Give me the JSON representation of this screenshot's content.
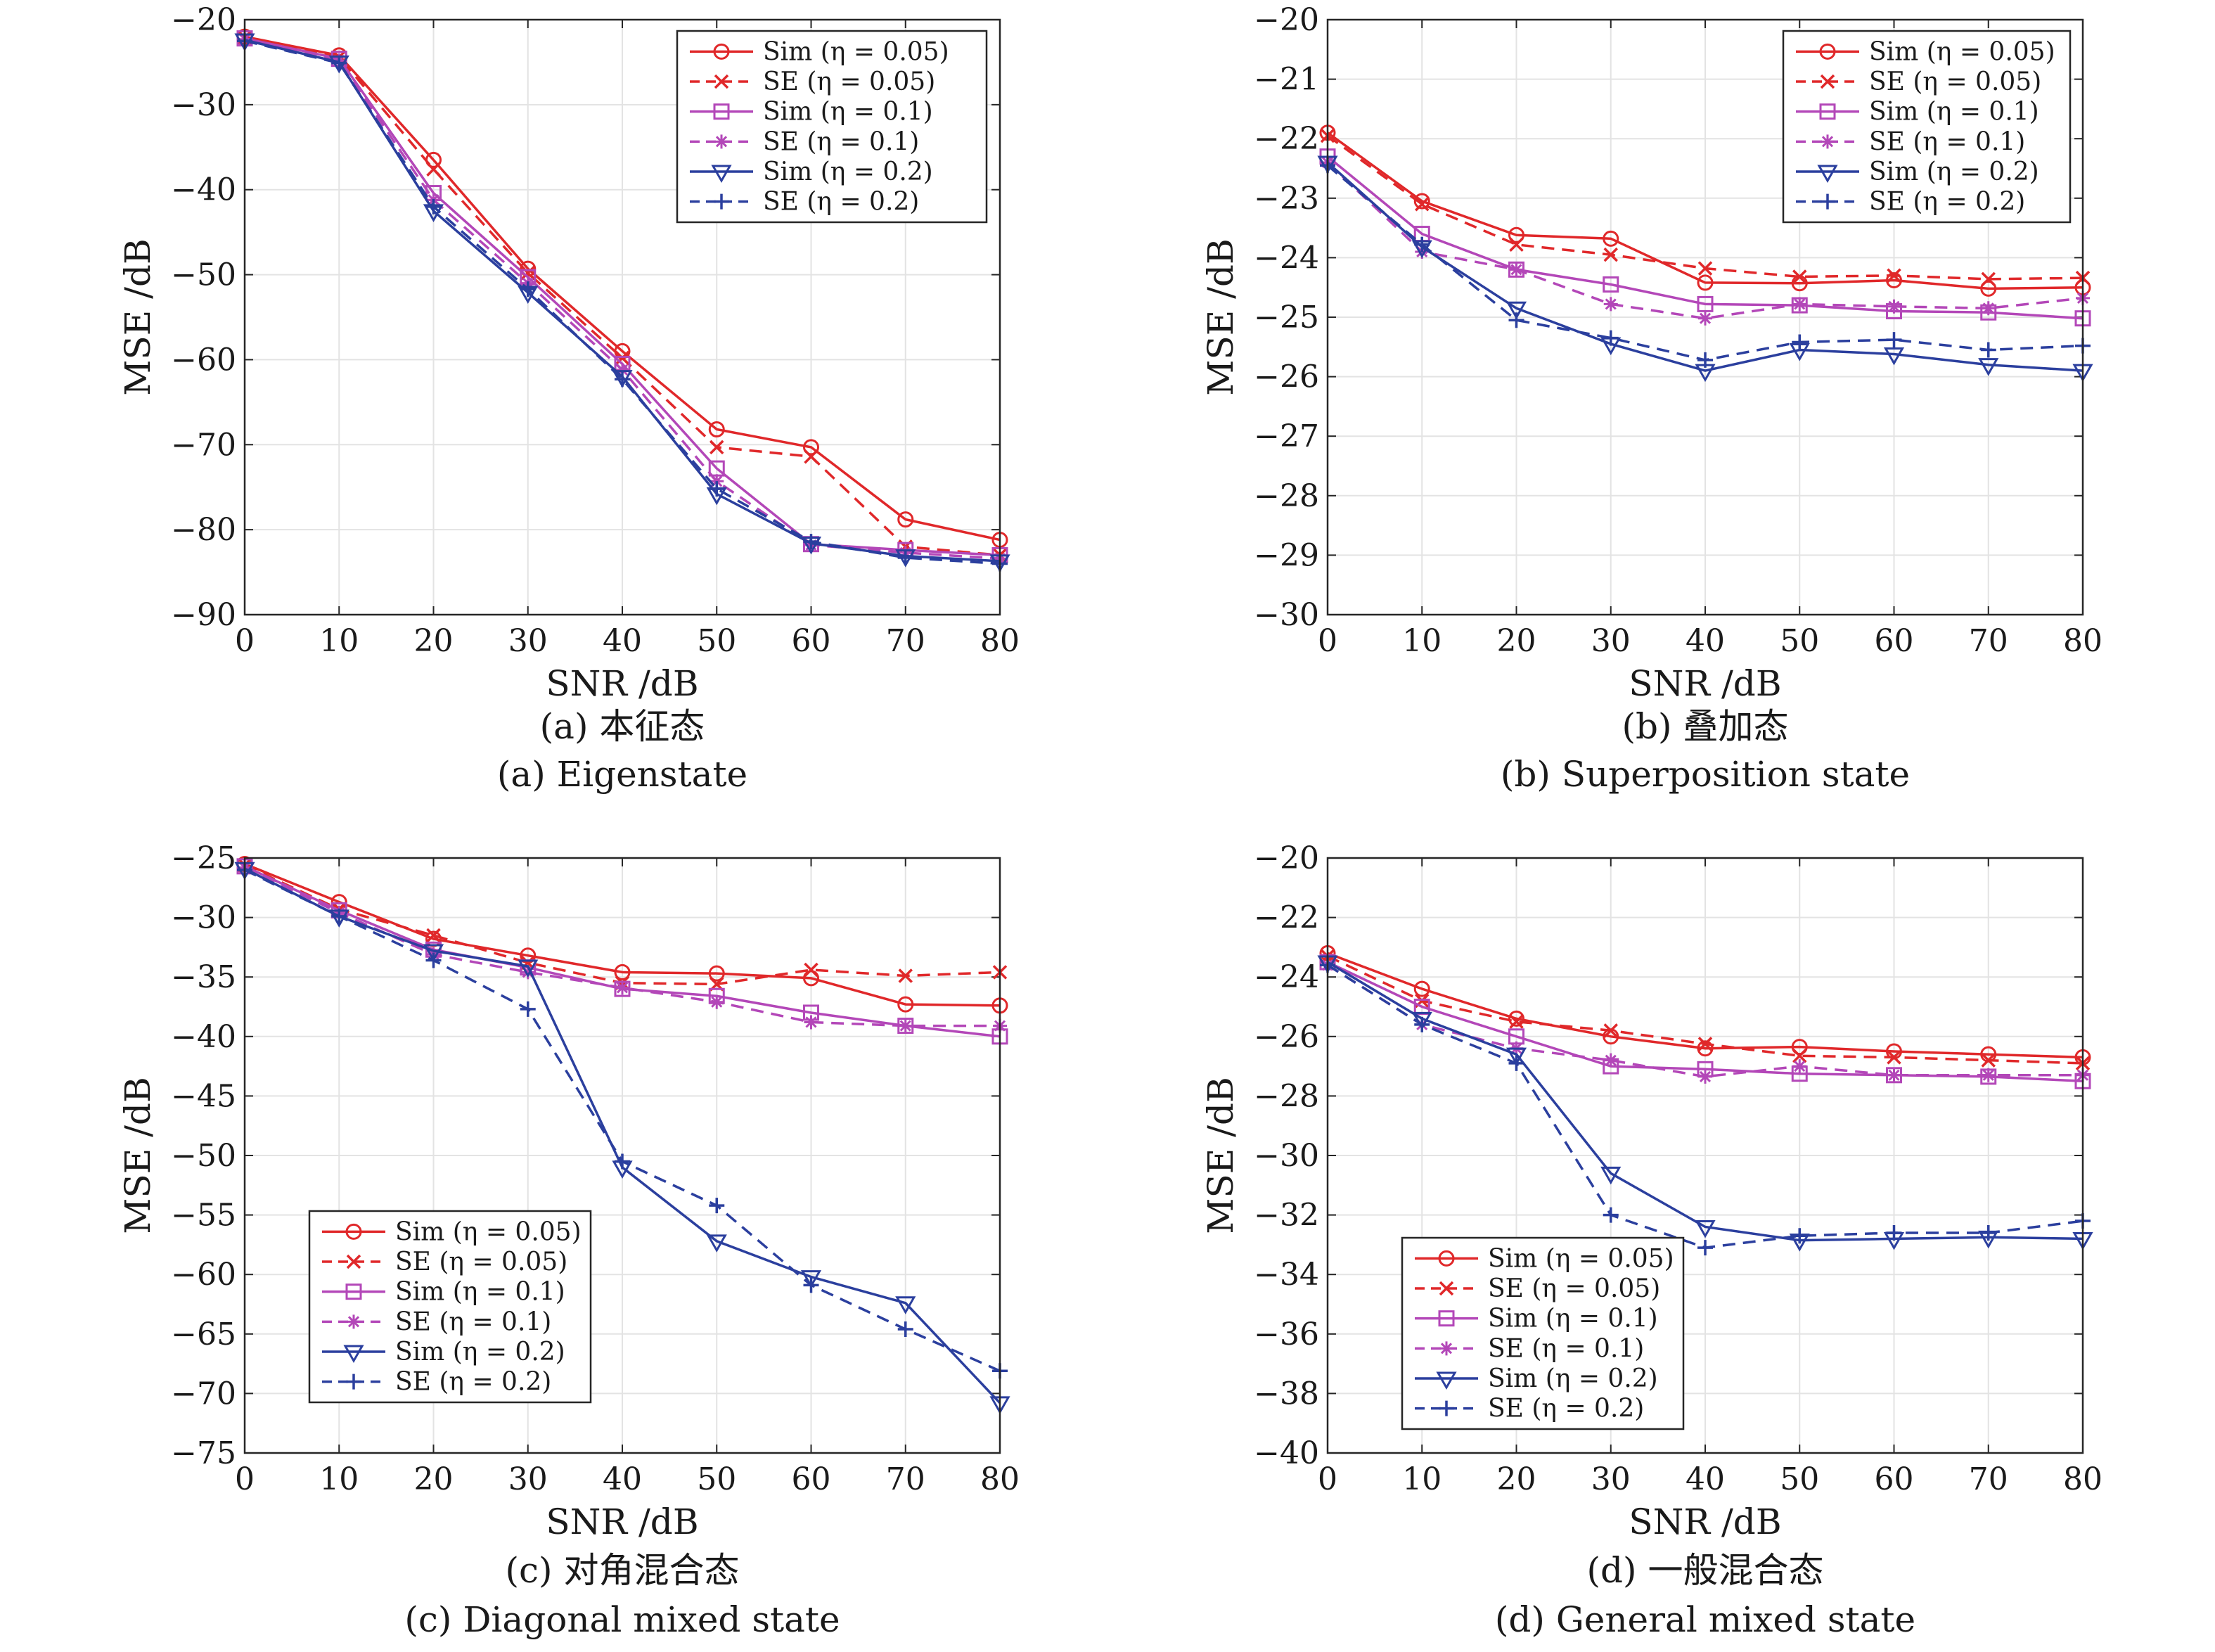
{
  "chart_data": [
    {
      "type": "line",
      "caption_cn": "(a) 本征态",
      "caption_en": "(a) Eigenstate",
      "xlabel": "SNR /dB",
      "ylabel": "MSE /dB",
      "xlim": [
        0,
        80
      ],
      "ylim": [
        -90,
        -20
      ],
      "xticks": [
        0,
        10,
        20,
        30,
        40,
        50,
        60,
        70,
        80
      ],
      "yticks": [
        -20,
        -30,
        -40,
        -50,
        -60,
        -70,
        -80,
        -90
      ],
      "grid": true,
      "legend_position": "top-right",
      "x": [
        0,
        10,
        20,
        30,
        40,
        50,
        60,
        70,
        80
      ],
      "series": [
        {
          "name": "Sim (η = 0.05)",
          "color": "#e0282a",
          "dash": "solid",
          "marker": "circle",
          "values": [
            -22.0,
            -24.2,
            -36.5,
            -49.3,
            -59.0,
            -68.2,
            -70.3,
            -78.8,
            -81.2
          ]
        },
        {
          "name": "SE (η = 0.05)",
          "color": "#e0282a",
          "dash": "dashed",
          "marker": "x",
          "values": [
            -22.1,
            -24.4,
            -37.6,
            -49.8,
            -59.8,
            -70.3,
            -71.4,
            -82.0,
            -83.0
          ]
        },
        {
          "name": "Sim (η = 0.1)",
          "color": "#b347b8",
          "dash": "solid",
          "marker": "square",
          "values": [
            -22.2,
            -24.6,
            -40.4,
            -50.3,
            -60.5,
            -72.8,
            -81.7,
            -82.4,
            -83.0
          ]
        },
        {
          "name": "SE (η = 0.1)",
          "color": "#b347b8",
          "dash": "dashed",
          "marker": "asterisk",
          "values": [
            -22.3,
            -24.8,
            -41.2,
            -51.0,
            -61.2,
            -74.3,
            -81.8,
            -82.7,
            -83.4
          ]
        },
        {
          "name": "Sim (η = 0.2)",
          "color": "#2b3f9e",
          "dash": "solid",
          "marker": "triangle-down",
          "values": [
            -22.4,
            -25.0,
            -42.5,
            -52.1,
            -62.0,
            -75.8,
            -81.6,
            -83.1,
            -83.7
          ]
        },
        {
          "name": "SE (η = 0.2)",
          "color": "#2b3f9e",
          "dash": "dashed",
          "marker": "plus",
          "values": [
            -22.5,
            -25.1,
            -42.0,
            -51.7,
            -62.3,
            -75.2,
            -81.4,
            -83.3,
            -84.0
          ]
        }
      ]
    },
    {
      "type": "line",
      "caption_cn": "(b) 叠加态",
      "caption_en": "(b) Superposition state",
      "xlabel": "SNR /dB",
      "ylabel": "MSE /dB",
      "xlim": [
        0,
        80
      ],
      "ylim": [
        -30,
        -20
      ],
      "xticks": [
        0,
        10,
        20,
        30,
        40,
        50,
        60,
        70,
        80
      ],
      "yticks": [
        -20,
        -21,
        -22,
        -23,
        -24,
        -25,
        -26,
        -27,
        -28,
        -29,
        -30
      ],
      "grid": true,
      "legend_position": "top-right",
      "x": [
        0,
        10,
        20,
        30,
        40,
        50,
        60,
        70,
        80
      ],
      "series": [
        {
          "name": "Sim (η = 0.05)",
          "color": "#e0282a",
          "dash": "solid",
          "marker": "circle",
          "values": [
            -21.9,
            -23.05,
            -23.62,
            -23.68,
            -24.42,
            -24.43,
            -24.38,
            -24.52,
            -24.5
          ]
        },
        {
          "name": "SE (η = 0.05)",
          "color": "#e0282a",
          "dash": "dashed",
          "marker": "x",
          "values": [
            -21.95,
            -23.1,
            -23.78,
            -23.95,
            -24.18,
            -24.32,
            -24.3,
            -24.36,
            -24.34
          ]
        },
        {
          "name": "Sim (η = 0.1)",
          "color": "#b347b8",
          "dash": "solid",
          "marker": "square",
          "values": [
            -22.3,
            -23.6,
            -24.2,
            -24.45,
            -24.78,
            -24.8,
            -24.9,
            -24.92,
            -25.02
          ]
        },
        {
          "name": "SE (η = 0.1)",
          "color": "#b347b8",
          "dash": "dashed",
          "marker": "asterisk",
          "values": [
            -22.4,
            -23.9,
            -24.2,
            -24.78,
            -25.02,
            -24.78,
            -24.82,
            -24.85,
            -24.68
          ]
        },
        {
          "name": "Sim (η = 0.2)",
          "color": "#2b3f9e",
          "dash": "solid",
          "marker": "triangle-down",
          "values": [
            -22.4,
            -23.82,
            -24.85,
            -25.45,
            -25.9,
            -25.55,
            -25.62,
            -25.8,
            -25.9
          ]
        },
        {
          "name": "SE (η = 0.2)",
          "color": "#2b3f9e",
          "dash": "dashed",
          "marker": "plus",
          "values": [
            -22.45,
            -23.78,
            -25.05,
            -25.35,
            -25.72,
            -25.42,
            -25.38,
            -25.55,
            -25.48
          ]
        }
      ]
    },
    {
      "type": "line",
      "caption_cn": "(c) 对角混合态",
      "caption_en": "(c) Diagonal mixed state",
      "xlabel": "SNR /dB",
      "ylabel": "MSE /dB",
      "xlim": [
        0,
        80
      ],
      "ylim": [
        -75,
        -25
      ],
      "xticks": [
        0,
        10,
        20,
        30,
        40,
        50,
        60,
        70,
        80
      ],
      "yticks": [
        -25,
        -30,
        -35,
        -40,
        -45,
        -50,
        -55,
        -60,
        -65,
        -70,
        -75
      ],
      "grid": true,
      "legend_position": "bottom-left",
      "x": [
        0,
        10,
        20,
        30,
        40,
        50,
        60,
        70,
        80
      ],
      "series": [
        {
          "name": "Sim (η = 0.05)",
          "color": "#e0282a",
          "dash": "solid",
          "marker": "circle",
          "values": [
            -25.5,
            -28.7,
            -31.8,
            -33.2,
            -34.6,
            -34.7,
            -35.1,
            -37.3,
            -37.4
          ]
        },
        {
          "name": "SE (η = 0.05)",
          "color": "#e0282a",
          "dash": "dashed",
          "marker": "x",
          "values": [
            -25.6,
            -29.3,
            -31.5,
            -33.8,
            -35.5,
            -35.6,
            -34.4,
            -34.9,
            -34.6
          ]
        },
        {
          "name": "Sim (η = 0.1)",
          "color": "#b347b8",
          "dash": "solid",
          "marker": "square",
          "values": [
            -25.7,
            -29.4,
            -32.7,
            -34.2,
            -36.0,
            -36.6,
            -38.0,
            -39.1,
            -40.0
          ]
        },
        {
          "name": "SE (η = 0.1)",
          "color": "#b347b8",
          "dash": "dashed",
          "marker": "asterisk",
          "values": [
            -25.8,
            -29.6,
            -33.1,
            -34.6,
            -35.9,
            -37.1,
            -38.8,
            -39.1,
            -39.1
          ]
        },
        {
          "name": "Sim (η = 0.2)",
          "color": "#2b3f9e",
          "dash": "solid",
          "marker": "triangle-down",
          "values": [
            -25.9,
            -29.9,
            -32.8,
            -34.1,
            -51.0,
            -57.2,
            -60.2,
            -62.4,
            -70.8
          ]
        },
        {
          "name": "SE (η = 0.2)",
          "color": "#2b3f9e",
          "dash": "dashed",
          "marker": "plus",
          "values": [
            -26.0,
            -29.9,
            -33.6,
            -37.7,
            -50.5,
            -54.2,
            -60.9,
            -64.6,
            -68.1
          ]
        }
      ]
    },
    {
      "type": "line",
      "caption_cn": "(d) 一般混合态",
      "caption_en": "(d) General mixed state",
      "xlabel": "SNR /dB",
      "ylabel": "MSE /dB",
      "xlim": [
        0,
        80
      ],
      "ylim": [
        -40,
        -20
      ],
      "xticks": [
        0,
        10,
        20,
        30,
        40,
        50,
        60,
        70,
        80
      ],
      "yticks": [
        -20,
        -22,
        -24,
        -26,
        -28,
        -30,
        -32,
        -34,
        -36,
        -38,
        -40
      ],
      "grid": true,
      "legend_position": "bottom-left",
      "x": [
        0,
        10,
        20,
        30,
        40,
        50,
        60,
        70,
        80
      ],
      "series": [
        {
          "name": "Sim (η = 0.05)",
          "color": "#e0282a",
          "dash": "solid",
          "marker": "circle",
          "values": [
            -23.2,
            -24.4,
            -25.4,
            -26.0,
            -26.4,
            -26.35,
            -26.5,
            -26.6,
            -26.7
          ]
        },
        {
          "name": "SE (η = 0.05)",
          "color": "#e0282a",
          "dash": "dashed",
          "marker": "x",
          "values": [
            -23.3,
            -24.8,
            -25.5,
            -25.8,
            -26.25,
            -26.65,
            -26.7,
            -26.8,
            -26.9
          ]
        },
        {
          "name": "Sim (η = 0.1)",
          "color": "#b347b8",
          "dash": "solid",
          "marker": "square",
          "values": [
            -23.5,
            -25.0,
            -26.0,
            -27.0,
            -27.1,
            -27.25,
            -27.3,
            -27.35,
            -27.5
          ]
        },
        {
          "name": "SE (η = 0.1)",
          "color": "#b347b8",
          "dash": "dashed",
          "marker": "asterisk",
          "values": [
            -23.6,
            -25.6,
            -26.4,
            -26.8,
            -27.35,
            -27.0,
            -27.3,
            -27.3,
            -27.3
          ]
        },
        {
          "name": "Sim (η = 0.2)",
          "color": "#2b3f9e",
          "dash": "solid",
          "marker": "triangle-down",
          "values": [
            -23.5,
            -25.4,
            -26.6,
            -30.6,
            -32.4,
            -32.85,
            -32.8,
            -32.75,
            -32.8
          ]
        },
        {
          "name": "SE (η = 0.2)",
          "color": "#2b3f9e",
          "dash": "dashed",
          "marker": "plus",
          "values": [
            -23.6,
            -25.6,
            -26.9,
            -32.0,
            -33.1,
            -32.7,
            -32.6,
            -32.6,
            -32.2
          ]
        }
      ]
    }
  ]
}
